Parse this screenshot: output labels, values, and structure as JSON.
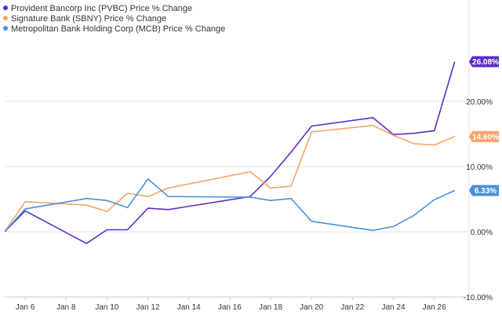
{
  "chart_data": {
    "type": "line",
    "x": [
      "Jan 5",
      "Jan 6",
      "Jan 9",
      "Jan 10",
      "Jan 11",
      "Jan 12",
      "Jan 13",
      "Jan 17",
      "Jan 18",
      "Jan 19",
      "Jan 20",
      "Jan 23",
      "Jan 24",
      "Jan 25",
      "Jan 26",
      "Jan 27"
    ],
    "x_day": [
      5,
      6,
      9,
      10,
      11,
      12,
      13,
      17,
      18,
      19,
      20,
      23,
      24,
      25,
      26,
      27
    ],
    "series": [
      {
        "name": "Provident Bancorp Inc (PVBC) Price % Change",
        "color": "#5b2ec9",
        "values": [
          0,
          3.2,
          -1.8,
          0.3,
          0.3,
          3.6,
          3.4,
          5.4,
          8.5,
          12.2,
          16.2,
          17.5,
          14.9,
          15.1,
          15.5,
          26.08
        ],
        "end_label": "26.08%"
      },
      {
        "name": "Signature Bank (SBNY) Price % Change",
        "color": "#f7a36b",
        "values": [
          0,
          4.6,
          4.1,
          3.1,
          5.9,
          5.4,
          6.7,
          9.2,
          6.7,
          7.0,
          15.3,
          16.3,
          14.8,
          13.5,
          13.3,
          14.6
        ],
        "end_label": "14.60%"
      },
      {
        "name": "Metropolitan Bank Holding Corp (MCB) Price % Change",
        "color": "#4a90d9",
        "values": [
          0,
          3.5,
          5.1,
          4.8,
          3.7,
          8.1,
          5.4,
          5.3,
          4.8,
          5.1,
          1.6,
          0.2,
          0.8,
          2.5,
          4.9,
          6.33
        ],
        "end_label": "6.33%"
      }
    ],
    "x_ticks": [
      {
        "label": "Jan 6",
        "day": 6
      },
      {
        "label": "Jan 8",
        "day": 8
      },
      {
        "label": "Jan 10",
        "day": 10
      },
      {
        "label": "Jan 12",
        "day": 12
      },
      {
        "label": "Jan 14",
        "day": 14
      },
      {
        "label": "Jan 16",
        "day": 16
      },
      {
        "label": "Jan 18",
        "day": 18
      },
      {
        "label": "Jan 20",
        "day": 20
      },
      {
        "label": "Jan 22",
        "day": 22
      },
      {
        "label": "Jan 24",
        "day": 24
      },
      {
        "label": "Jan 26",
        "day": 26
      }
    ],
    "y_ticks": [
      {
        "label": "20.00%",
        "value": 20
      },
      {
        "label": "10.00%",
        "value": 10
      },
      {
        "label": "0.00%",
        "value": 0
      },
      {
        "label": "-10.00%",
        "value": -10
      }
    ],
    "xlim": [
      5,
      27.7
    ],
    "ylim": [
      -10,
      30
    ],
    "grid": true,
    "legend_position": "top-left"
  }
}
